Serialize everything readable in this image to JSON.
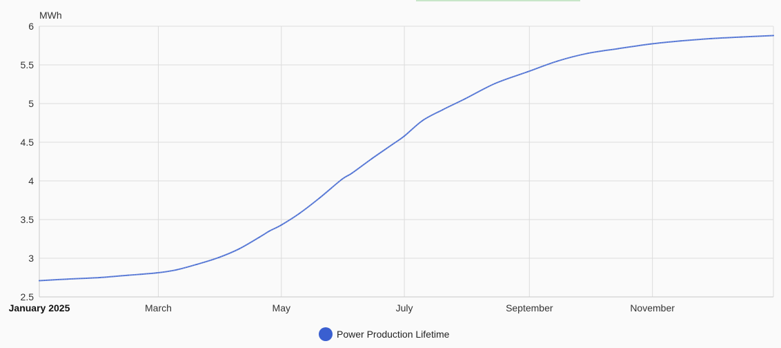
{
  "chart_data": {
    "type": "line",
    "unit": "MWh",
    "x_tick_labels": [
      "January 2025",
      "March",
      "May",
      "July",
      "September",
      "November"
    ],
    "y_ticks": [
      2.5,
      3,
      3.5,
      4,
      4.5,
      5,
      5.5,
      6
    ],
    "ylim": [
      2.5,
      6
    ],
    "xlim": [
      "2025-01-01",
      "2025-12-31"
    ],
    "grid": true,
    "legend_position": "bottom",
    "series": [
      {
        "name": "Power Production Lifetime",
        "color": "#4a6fd4",
        "points": [
          [
            "2025-01-01",
            2.71
          ],
          [
            "2025-01-15",
            2.73
          ],
          [
            "2025-01-31",
            2.75
          ],
          [
            "2025-02-14",
            2.78
          ],
          [
            "2025-02-28",
            2.81
          ],
          [
            "2025-03-10",
            2.85
          ],
          [
            "2025-03-20",
            2.92
          ],
          [
            "2025-03-31",
            3.01
          ],
          [
            "2025-04-10",
            3.12
          ],
          [
            "2025-04-20",
            3.27
          ],
          [
            "2025-04-25",
            3.35
          ],
          [
            "2025-05-01",
            3.43
          ],
          [
            "2025-05-10",
            3.58
          ],
          [
            "2025-05-20",
            3.78
          ],
          [
            "2025-05-31",
            4.02
          ],
          [
            "2025-06-05",
            4.1
          ],
          [
            "2025-06-15",
            4.29
          ],
          [
            "2025-06-25",
            4.47
          ],
          [
            "2025-07-01",
            4.58
          ],
          [
            "2025-07-10",
            4.78
          ],
          [
            "2025-07-20",
            4.92
          ],
          [
            "2025-07-31",
            5.06
          ],
          [
            "2025-08-15",
            5.26
          ],
          [
            "2025-08-31",
            5.41
          ],
          [
            "2025-09-15",
            5.55
          ],
          [
            "2025-09-30",
            5.65
          ],
          [
            "2025-10-15",
            5.71
          ],
          [
            "2025-10-31",
            5.77
          ],
          [
            "2025-11-15",
            5.81
          ],
          [
            "2025-11-30",
            5.84
          ],
          [
            "2025-12-15",
            5.86
          ],
          [
            "2025-12-31",
            5.88
          ]
        ]
      }
    ]
  },
  "colors": {
    "series_line": "#4a6fd4",
    "legend_dot": "#3a5fd0",
    "grid": "#dcdcdc",
    "background": "#fafafa"
  },
  "legend": {
    "items": [
      {
        "label": "Power Production Lifetime"
      }
    ]
  }
}
